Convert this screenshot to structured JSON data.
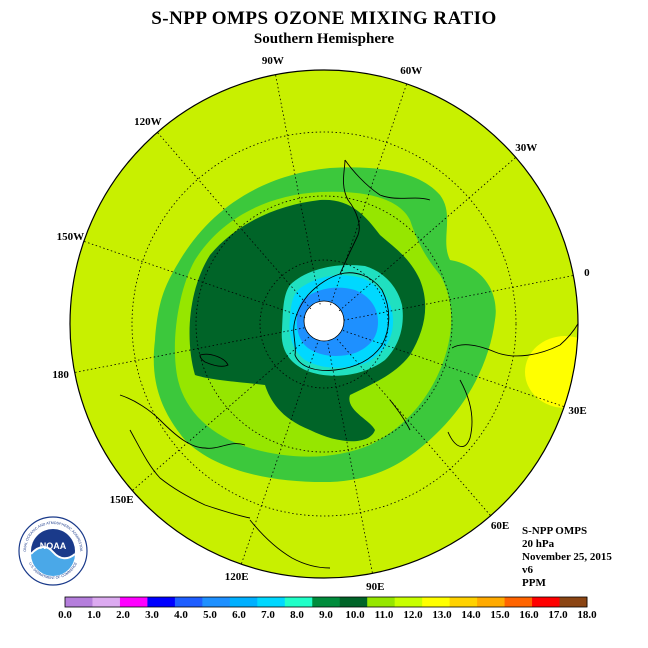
{
  "title": "S-NPP OMPS OZONE MIXING RATIO",
  "subtitle": "Southern Hemisphere",
  "longitude_labels": [
    "90W",
    "60W",
    "30W",
    "0",
    "30E",
    "60E",
    "90E",
    "120E",
    "150E",
    "180",
    "150W",
    "120W"
  ],
  "info": {
    "instrument": "S-NPP OMPS",
    "pressure_level": "20 hPa",
    "date": "November 25, 2015",
    "version": "v6",
    "units": "PPM"
  },
  "logo": {
    "text": "NOAA",
    "ring_text": "NATIONAL OCEANIC AND ATMOSPHERIC ADMINISTRATION",
    "ring_text_bottom": "U.S. DEPARTMENT OF COMMERCE"
  },
  "legend": {
    "ticks": [
      "0.0",
      "1.0",
      "2.0",
      "3.0",
      "4.0",
      "5.0",
      "6.0",
      "7.0",
      "8.0",
      "9.0",
      "10.0",
      "11.0",
      "12.0",
      "13.0",
      "14.0",
      "15.0",
      "16.0",
      "17.0",
      "18.0"
    ],
    "colors": [
      "#b57edc",
      "#dcaaf0",
      "#ff00ff",
      "#0000ff",
      "#1e5eff",
      "#1e90ff",
      "#00b0ff",
      "#00d8ff",
      "#20ffc8",
      "#008c3c",
      "#006428",
      "#96e600",
      "#c8ff00",
      "#ffff00",
      "#ffd200",
      "#ffaa00",
      "#ff6400",
      "#ff0000",
      "#8b4513"
    ]
  },
  "fill_colors": {
    "outer": "#c8f000",
    "band_light": "#96e600",
    "band_green": "#3cc83c",
    "core_dark": "#006428",
    "core_teal": "#20e0c0",
    "core_cyan": "#00d8ff",
    "core_blue": "#1e90ff",
    "pole_hole": "#ffffff",
    "yellow_patch": "#ffff00"
  }
}
